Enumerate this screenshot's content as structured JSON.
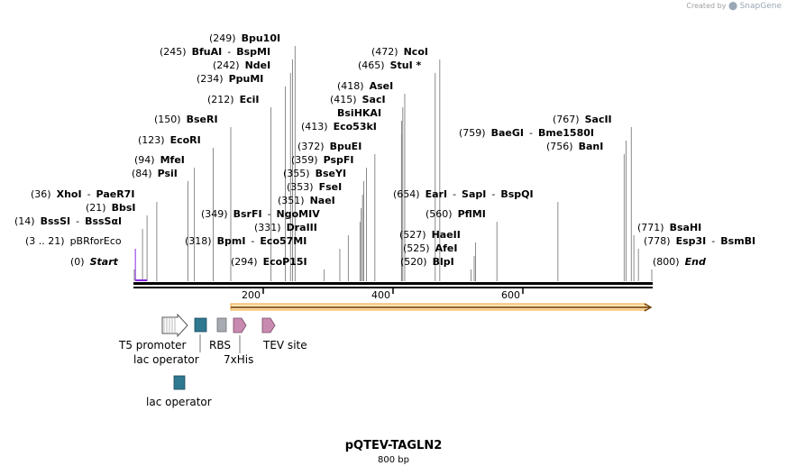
{
  "credit": {
    "prefix": "Created by",
    "brand": "SnapGene"
  },
  "title": "pQTEV-TAGLN2",
  "length_label": "800 bp",
  "ticks": [
    {
      "label": "200",
      "value": 200
    },
    {
      "label": "400",
      "value": 400
    },
    {
      "label": "600",
      "value": 600
    }
  ],
  "sites": [
    {
      "pos": "(0)",
      "names": [
        "Start"
      ],
      "loc": 0,
      "italic": true
    },
    {
      "pos": "(800)",
      "names": [
        "End"
      ],
      "loc": 800,
      "italic": true
    },
    {
      "pos": "(3 .. 21)",
      "names": [
        "pBRforEco"
      ],
      "loc": 3,
      "primer": true
    },
    {
      "pos": "(14)",
      "names": [
        "BssSI",
        "BssSαI"
      ],
      "loc": 14
    },
    {
      "pos": "(21)",
      "names": [
        "BbsI"
      ],
      "loc": 21
    },
    {
      "pos": "(36)",
      "names": [
        "XhoI",
        "PaeR7I"
      ],
      "loc": 36
    },
    {
      "pos": "(84)",
      "names": [
        "PsiI"
      ],
      "loc": 84
    },
    {
      "pos": "(94)",
      "names": [
        "MfeI"
      ],
      "loc": 94
    },
    {
      "pos": "(123)",
      "names": [
        "EcoRI"
      ],
      "loc": 123
    },
    {
      "pos": "(150)",
      "names": [
        "BseRI"
      ],
      "loc": 150
    },
    {
      "pos": "(212)",
      "names": [
        "EciI"
      ],
      "loc": 212
    },
    {
      "pos": "(234)",
      "names": [
        "PpuMI"
      ],
      "loc": 234
    },
    {
      "pos": "(242)",
      "names": [
        "NdeI"
      ],
      "loc": 242
    },
    {
      "pos": "(245)",
      "names": [
        "BfuAI",
        "BspMI"
      ],
      "loc": 245
    },
    {
      "pos": "(249)",
      "names": [
        "Bpu10I"
      ],
      "loc": 249
    },
    {
      "pos": "(294)",
      "names": [
        "EcoP15I"
      ],
      "loc": 294
    },
    {
      "pos": "(318)",
      "names": [
        "BpmI",
        "Eco57MI"
      ],
      "loc": 318
    },
    {
      "pos": "(331)",
      "names": [
        "DraIII"
      ],
      "loc": 331
    },
    {
      "pos": "(349)",
      "names": [
        "BsrFI",
        "NgoMIV"
      ],
      "loc": 349
    },
    {
      "pos": "(351)",
      "names": [
        "NaeI"
      ],
      "loc": 351
    },
    {
      "pos": "(353)",
      "names": [
        "FseI"
      ],
      "loc": 353
    },
    {
      "pos": "(355)",
      "names": [
        "BseYI"
      ],
      "loc": 355
    },
    {
      "pos": "(359)",
      "names": [
        "PspFI"
      ],
      "loc": 359
    },
    {
      "pos": "(372)",
      "names": [
        "BpuEI"
      ],
      "loc": 372
    },
    {
      "pos": "(413)",
      "names": [
        "Eco53kI"
      ],
      "loc": 413
    },
    {
      "pos": "",
      "names": [
        "BsiHKAI"
      ],
      "loc": 413
    },
    {
      "pos": "(415)",
      "names": [
        "SacI"
      ],
      "loc": 415
    },
    {
      "pos": "(418)",
      "names": [
        "AseI"
      ],
      "loc": 418
    },
    {
      "pos": "(465)",
      "names": [
        "StuI *"
      ],
      "loc": 465
    },
    {
      "pos": "(472)",
      "names": [
        "NcoI"
      ],
      "loc": 472
    },
    {
      "pos": "(520)",
      "names": [
        "BlpI"
      ],
      "loc": 520
    },
    {
      "pos": "(525)",
      "names": [
        "AfeI"
      ],
      "loc": 525
    },
    {
      "pos": "(527)",
      "names": [
        "HaeII"
      ],
      "loc": 527
    },
    {
      "pos": "(560)",
      "names": [
        "PflMI"
      ],
      "loc": 560
    },
    {
      "pos": "(654)",
      "names": [
        "EarI",
        "SapI",
        "BspQI"
      ],
      "loc": 654
    },
    {
      "pos": "(756)",
      "names": [
        "BanI"
      ],
      "loc": 756
    },
    {
      "pos": "(759)",
      "names": [
        "BaeGI",
        "Bme1580I"
      ],
      "loc": 759
    },
    {
      "pos": "(767)",
      "names": [
        "SacII"
      ],
      "loc": 767
    },
    {
      "pos": "(771)",
      "names": [
        "BsaHI"
      ],
      "loc": 771
    },
    {
      "pos": "(778)",
      "names": [
        "Esp3I",
        "BsmBI"
      ],
      "loc": 778
    }
  ],
  "features": [
    {
      "label": "T5 promoter",
      "kind": "promoter"
    },
    {
      "label": "lac operator",
      "kind": "operator"
    },
    {
      "label": "RBS",
      "kind": "rbs"
    },
    {
      "label": "7xHis",
      "kind": "tag"
    },
    {
      "label": "TEV site",
      "kind": "site"
    },
    {
      "label": "lac operator",
      "kind": "operator"
    }
  ],
  "colors": {
    "backbone": "#000000",
    "orf": "#f2a33a",
    "primer": "#8a2be2",
    "operator": "#2e7890",
    "rbs": "#a7aab0",
    "tag": "#c88ab0",
    "promoter": "#ffffff"
  }
}
